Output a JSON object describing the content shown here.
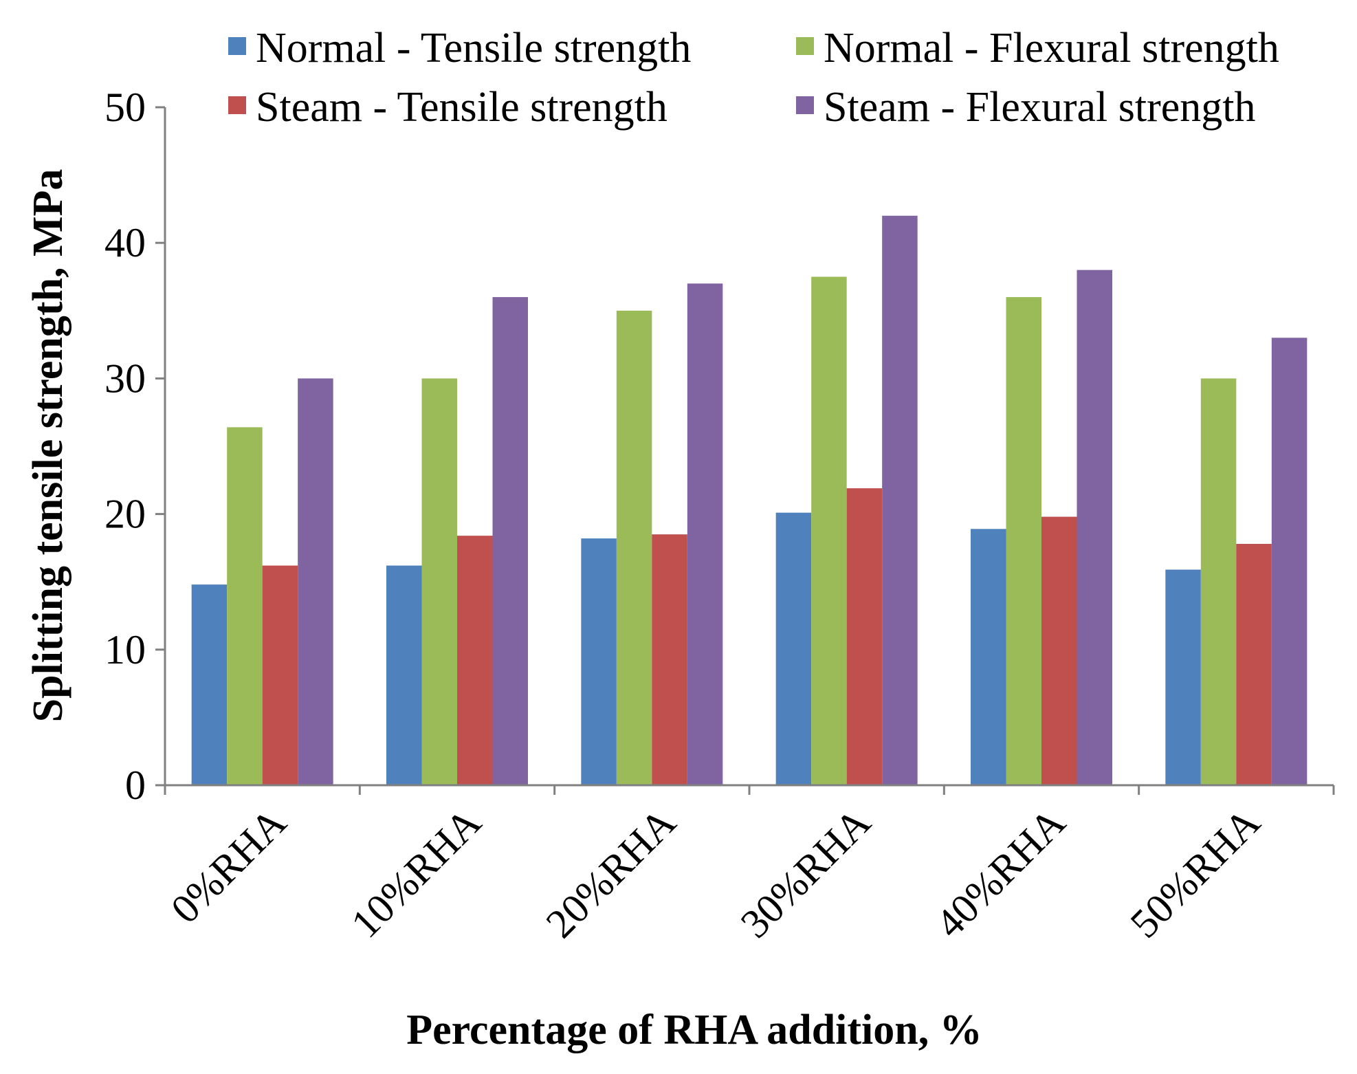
{
  "chart_data": {
    "type": "bar",
    "title": "",
    "xlabel": "Percentage of RHA addition, %",
    "ylabel": "Splitting tensile strength, MPa",
    "ylim": [
      0,
      50
    ],
    "yticks": [
      0,
      10,
      20,
      30,
      40,
      50
    ],
    "grid": false,
    "legend_position": "top",
    "categories": [
      "0%RHA",
      "10%RHA",
      "20%RHA",
      "30%RHA",
      "40%RHA",
      "50%RHA"
    ],
    "series": [
      {
        "name": "Normal - Tensile strength",
        "color": "#4F81BD",
        "values": [
          14.8,
          16.2,
          18.2,
          20.1,
          18.9,
          15.9
        ]
      },
      {
        "name": "Normal - Flexural strength",
        "color": "#9BBB59",
        "values": [
          26.4,
          30.0,
          35.0,
          37.5,
          36.0,
          30.0
        ]
      },
      {
        "name": "Steam - Tensile strength",
        "color": "#C0504D",
        "values": [
          16.2,
          18.4,
          18.5,
          21.9,
          19.8,
          17.8
        ]
      },
      {
        "name": "Steam - Flexural strength",
        "color": "#8064A2",
        "values": [
          30.0,
          36.0,
          37.0,
          42.0,
          38.0,
          33.0
        ]
      }
    ]
  }
}
